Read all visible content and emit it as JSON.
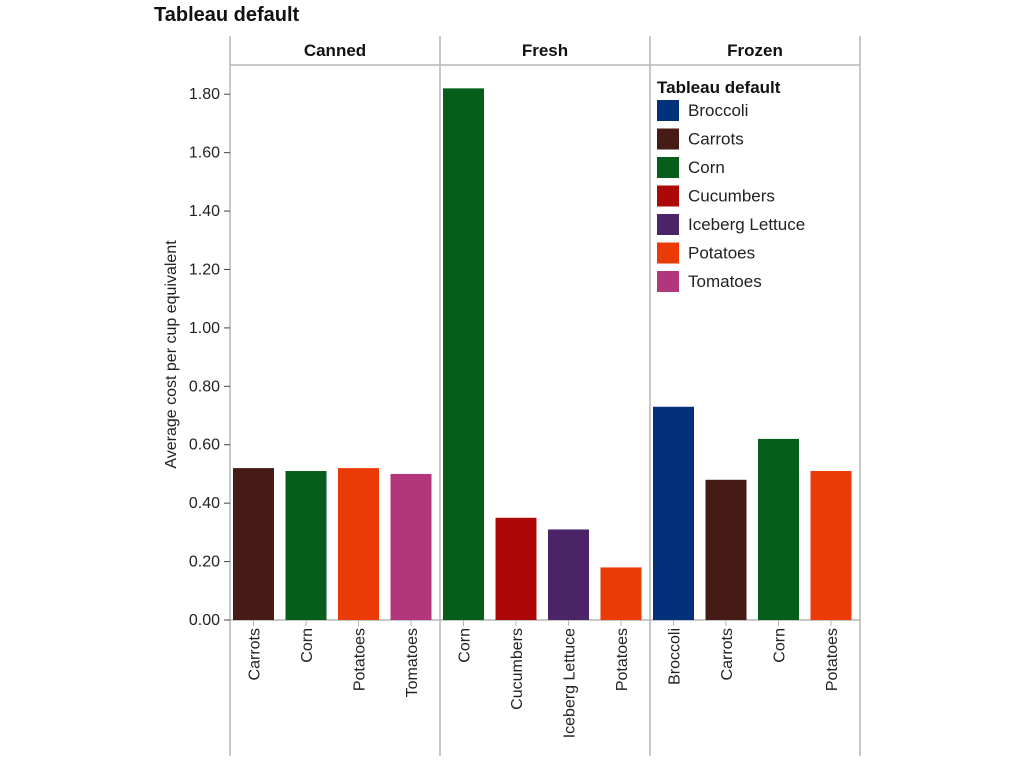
{
  "chart_data": {
    "type": "bar",
    "title": "Tableau default",
    "ylabel": "Average cost per cup equivalent",
    "xlabel": "",
    "ylim": [
      0,
      1.9
    ],
    "yticks": [
      "0.00",
      "0.20",
      "0.40",
      "0.60",
      "0.80",
      "1.00",
      "1.20",
      "1.40",
      "1.60",
      "1.80"
    ],
    "grid": false,
    "legend_position": "top-right",
    "legend": {
      "title": "Tableau default",
      "entries": [
        {
          "label": "Broccoli",
          "color": "#02307a"
        },
        {
          "label": "Carrots",
          "color": "#461a15"
        },
        {
          "label": "Corn",
          "color": "#055e1a"
        },
        {
          "label": "Cucumbers",
          "color": "#ad0808"
        },
        {
          "label": "Iceberg Lettuce",
          "color": "#4a2467"
        },
        {
          "label": "Potatoes",
          "color": "#ea3a06"
        },
        {
          "label": "Tomatoes",
          "color": "#b2367b"
        }
      ]
    },
    "panels": [
      {
        "name": "Canned",
        "categories": [
          "Carrots",
          "Corn",
          "Potatoes",
          "Tomatoes"
        ],
        "values": [
          0.52,
          0.51,
          0.52,
          0.5
        ]
      },
      {
        "name": "Fresh",
        "categories": [
          "Corn",
          "Cucumbers",
          "Iceberg Lettuce",
          "Potatoes"
        ],
        "values": [
          1.82,
          0.35,
          0.31,
          0.18
        ]
      },
      {
        "name": "Frozen",
        "categories": [
          "Broccoli",
          "Carrots",
          "Corn",
          "Potatoes"
        ],
        "values": [
          0.73,
          0.48,
          0.62,
          0.51
        ]
      }
    ]
  }
}
